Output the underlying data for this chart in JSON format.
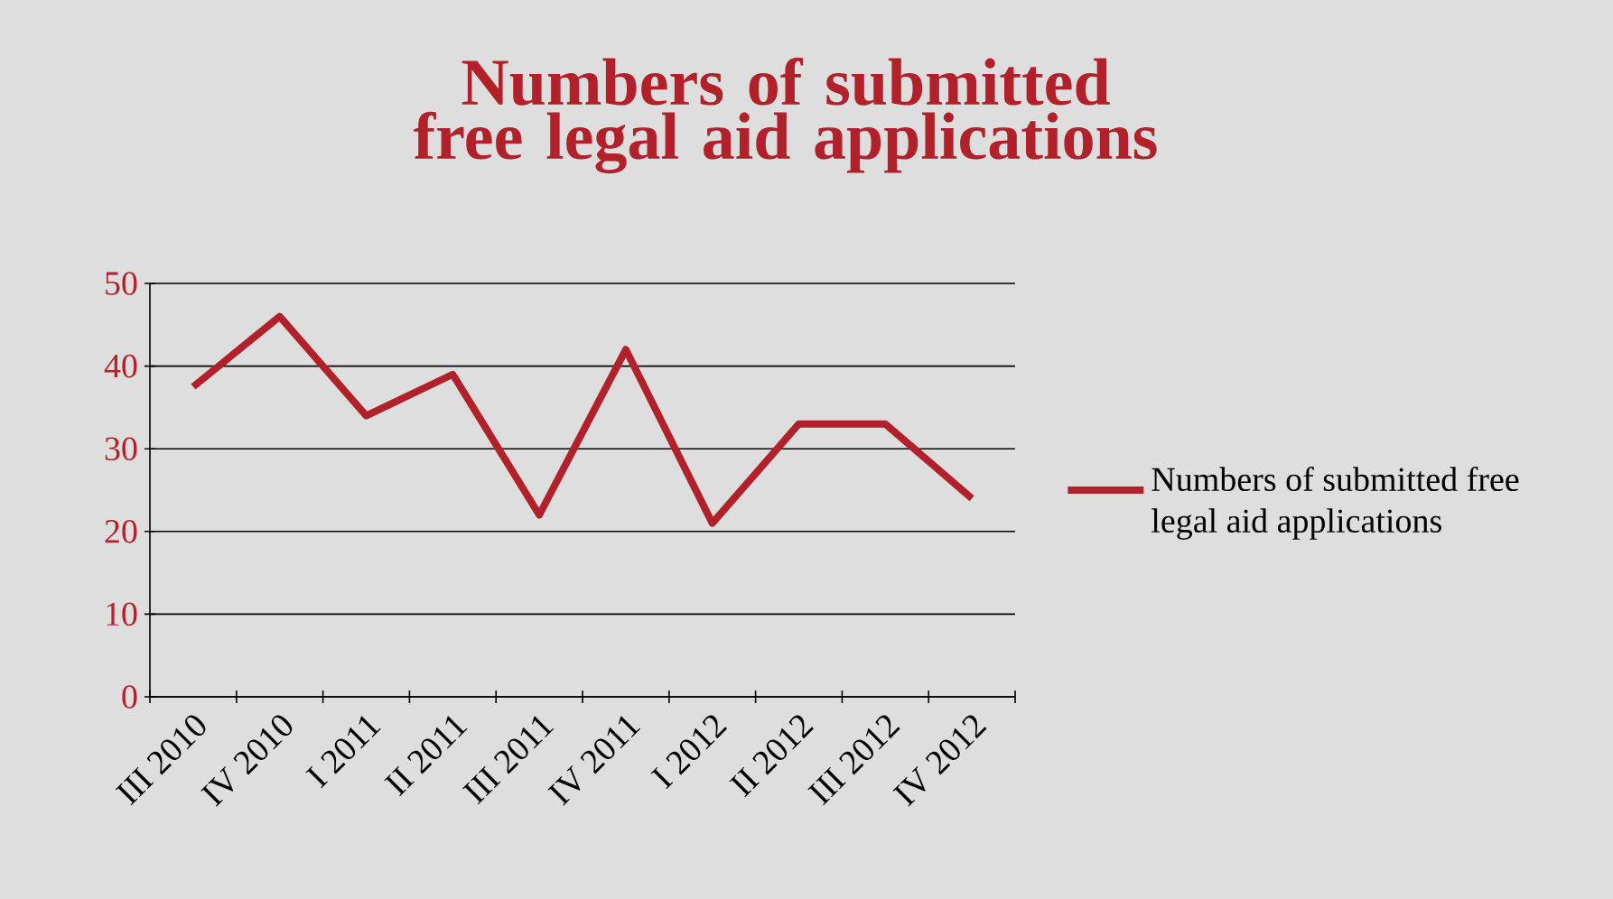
{
  "chart_data": {
    "type": "line",
    "title": "Numbers of submitted free legal aid applications",
    "categories": [
      "III 2010",
      "IV 2010",
      "I 2011",
      "II 2011",
      "III 2011",
      "IV 2011",
      "I 2012",
      "II 2012",
      "III 2012",
      "IV 2012"
    ],
    "series": [
      {
        "name": "Numbers of submitted free legal aid applications",
        "color": "#b2202a",
        "values": [
          37.5,
          46,
          34,
          39,
          22,
          42,
          21,
          33,
          33,
          24
        ]
      }
    ],
    "ylim": [
      0,
      50
    ],
    "yticks": [
      0,
      10,
      20,
      30,
      40,
      50
    ],
    "grid": "y",
    "legend": "right",
    "marker": "none",
    "line_style": "solid"
  }
}
